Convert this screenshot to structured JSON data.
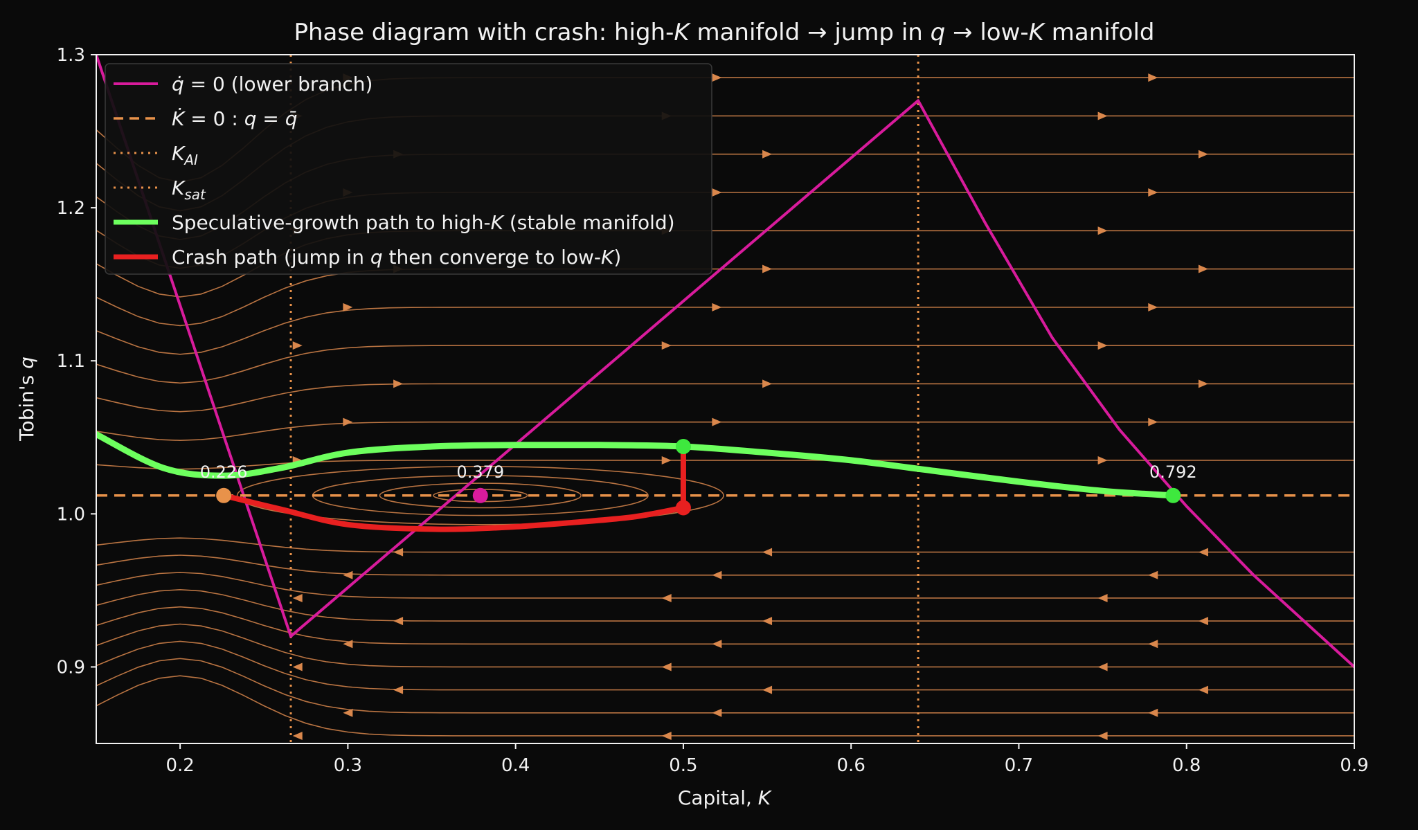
{
  "chart_data": {
    "type": "line",
    "title": "Phase diagram with crash: high-K manifold → jump in q → low-K manifold",
    "title_parts": {
      "a": "Phase diagram with crash: high-",
      "b": "K",
      "c": " manifold → jump in ",
      "d": "q",
      "e": " → low-",
      "f": "K",
      "g": " manifold"
    },
    "xlabel": "Capital, K",
    "xlabel_parts": {
      "a": "Capital, ",
      "b": "K"
    },
    "ylabel": "Tobin's q",
    "ylabel_parts": {
      "a": "Tobin's ",
      "b": "q"
    },
    "xlim": [
      0.15,
      0.9
    ],
    "ylim": [
      0.85,
      1.3
    ],
    "xticks": [
      "0.2",
      "0.3",
      "0.4",
      "0.5",
      "0.6",
      "0.7",
      "0.8",
      "0.9"
    ],
    "yticks": [
      "0.9",
      "1.0",
      "1.1",
      "1.2",
      "1.3"
    ],
    "grid": false,
    "legend_position": "top-left",
    "legend": [
      {
        "parts": [
          "",
          "q̇",
          " = 0 (lower branch)"
        ],
        "color": "#d81b9c",
        "style": "solid"
      },
      {
        "parts": [
          "",
          "K̇",
          " = 0 : ",
          "q",
          " = ",
          "q̄",
          ""
        ],
        "color": "#e8924a",
        "style": "dashed"
      },
      {
        "parts": [
          "",
          "K",
          "",
          "AI"
        ],
        "color": "#e8924a",
        "style": "dotted"
      },
      {
        "parts": [
          "",
          "K",
          "",
          "sat"
        ],
        "color": "#e8924a",
        "style": "dotted"
      },
      {
        "parts": [
          "Speculative-growth path to high-",
          "K",
          " (stable manifold)"
        ],
        "color": "#6dff5e",
        "style": "solid"
      },
      {
        "parts": [
          "Crash path (jump in ",
          "q",
          " then converge to low-",
          "K",
          ")"
        ],
        "color": "#e82020",
        "style": "solid"
      }
    ],
    "series": [
      {
        "name": "q̇ = 0 (lower branch)",
        "color": "#d81b9c",
        "x": [
          0.15,
          0.266,
          0.64,
          0.68,
          0.72,
          0.76,
          0.8,
          0.84,
          0.9
        ],
        "y": [
          1.3,
          0.92,
          1.27,
          1.19,
          1.115,
          1.055,
          1.005,
          0.96,
          0.9
        ]
      },
      {
        "name": "K̇ = 0 : q = q̄",
        "color": "#e8924a",
        "x": [
          0.15,
          0.9
        ],
        "y": [
          1.012,
          1.012
        ]
      },
      {
        "name": "Speculative-growth path to high-K (stable manifold)",
        "color": "#6dff5e",
        "x": [
          0.15,
          0.19,
          0.226,
          0.26,
          0.3,
          0.35,
          0.4,
          0.45,
          0.5,
          0.55,
          0.6,
          0.65,
          0.7,
          0.75,
          0.792
        ],
        "y": [
          1.052,
          1.03,
          1.025,
          1.03,
          1.04,
          1.044,
          1.045,
          1.045,
          1.044,
          1.04,
          1.035,
          1.028,
          1.021,
          1.015,
          1.012
        ]
      },
      {
        "name": "Crash path (jump in q then converge to low-K)",
        "color": "#e82020",
        "x": [
          0.5,
          0.5,
          0.47,
          0.43,
          0.39,
          0.35,
          0.3,
          0.26,
          0.226
        ],
        "y": [
          1.044,
          1.004,
          0.998,
          0.994,
          0.991,
          0.99,
          0.993,
          1.003,
          1.012
        ]
      }
    ],
    "vlines": [
      {
        "name": "K_AI",
        "x": 0.266,
        "color": "#e8924a"
      },
      {
        "name": "K_sat",
        "x": 0.64,
        "color": "#e8924a"
      }
    ],
    "points": [
      {
        "x": 0.226,
        "y": 1.012,
        "label": "0.226",
        "color": "#e8924a"
      },
      {
        "x": 0.379,
        "y": 1.012,
        "label": "0.379",
        "color": "#d81b9c"
      },
      {
        "x": 0.792,
        "y": 1.012,
        "label": "0.792",
        "color": "#3ee83e"
      },
      {
        "x": 0.5,
        "y": 1.044,
        "label": "",
        "color": "#3ee83e"
      },
      {
        "x": 0.5,
        "y": 1.004,
        "label": "",
        "color": "#e82020"
      }
    ],
    "streamlines": {
      "color": "#d9874c",
      "y_levels": [
        0.855,
        0.87,
        0.885,
        0.9,
        0.915,
        0.93,
        0.945,
        0.96,
        0.975,
        1.035,
        1.06,
        1.085,
        1.11,
        1.135,
        1.16,
        1.185,
        1.21,
        1.235,
        1.26,
        1.285
      ],
      "cycles": [
        {
          "rx": 0.028,
          "ry": 0.004
        },
        {
          "rx": 0.06,
          "ry": 0.008
        },
        {
          "rx": 0.1,
          "ry": 0.013
        },
        {
          "rx": 0.145,
          "ry": 0.019
        }
      ]
    }
  }
}
